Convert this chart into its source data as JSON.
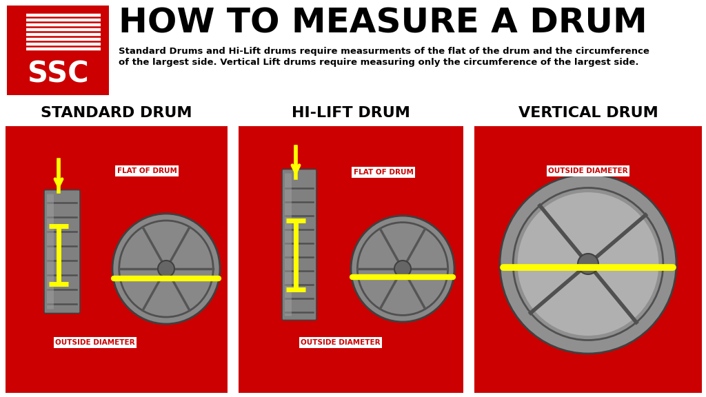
{
  "bg_color": "#ffffff",
  "red_color": "#cc0000",
  "yellow_color": "#ffff00",
  "title": "HOW TO MEASURE A DRUM",
  "subtitle_line1": "Standard Drums and Hi-Lift drums require measurments of the flat of the drum and the circumference",
  "subtitle_line2": "of the largest side. Vertical Lift drums require measuring only the circumference of the largest side.",
  "logo_red": "#cc0000",
  "section_titles": [
    "STANDARD DRUM",
    "HI-LIFT DRUM",
    "VERTICAL DRUM"
  ],
  "label_flat": "FLAT OF DRUM",
  "label_outside": "OUTSIDE DIAMETER",
  "title_fontsize": 36,
  "subtitle_fontsize": 9.5,
  "section_title_fontsize": 16,
  "label_fontsize": 7.5
}
